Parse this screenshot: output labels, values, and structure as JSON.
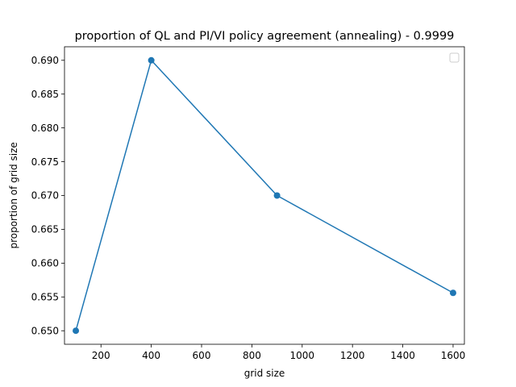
{
  "chart_data": {
    "type": "line",
    "title": "proportion of QL and PI/VI policy agreement (annealing) - 0.9999",
    "xlabel": "grid size",
    "ylabel": "proportion of grid size",
    "xlim": [
      55,
      1645
    ],
    "ylim": [
      0.648,
      0.692
    ],
    "xticks": [
      200,
      400,
      600,
      800,
      1000,
      1200,
      1400,
      1600
    ],
    "yticks": [
      0.65,
      0.655,
      0.66,
      0.665,
      0.67,
      0.675,
      0.68,
      0.685,
      0.69
    ],
    "ytick_labels": [
      "0.650",
      "0.655",
      "0.660",
      "0.665",
      "0.670",
      "0.675",
      "0.680",
      "0.685",
      "0.690"
    ],
    "grid": false,
    "legend": "top-right",
    "series": [
      {
        "color": "#1f77b4",
        "marker": "circle",
        "x": [
          100,
          400,
          900,
          1600
        ],
        "y": [
          0.65,
          0.69,
          0.67,
          0.6556
        ]
      }
    ]
  }
}
